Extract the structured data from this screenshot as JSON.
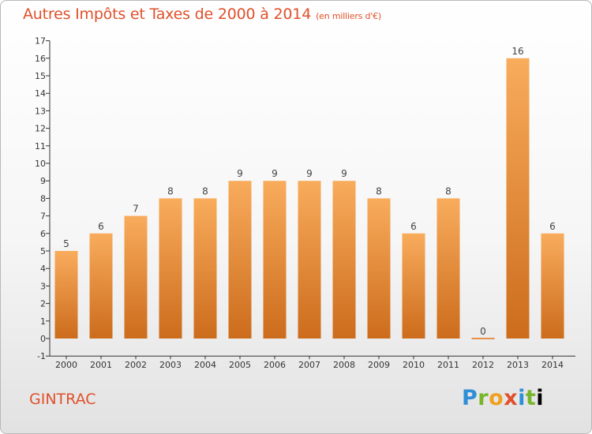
{
  "header": {
    "title": "Autres Impôts et Taxes de 2000 à 2014",
    "subtitle": "(en milliers d'€)"
  },
  "commune": "GINTRAC",
  "logo": {
    "letters": [
      "P",
      "r",
      "o",
      "x",
      "i",
      "t",
      "i"
    ]
  },
  "colors": {
    "title": "#e0502a",
    "bar_light": "#f8ac5c",
    "bar_dark": "#cc6c1c",
    "axis": "#333333"
  },
  "chart_data": {
    "type": "bar",
    "title": "Autres Impôts et Taxes de 2000 à 2014",
    "subtitle": "(en milliers d'€)",
    "categories": [
      "2000",
      "2001",
      "2002",
      "2003",
      "2004",
      "2005",
      "2006",
      "2007",
      "2008",
      "2009",
      "2010",
      "2011",
      "2012",
      "2013",
      "2014"
    ],
    "values": [
      5,
      6,
      7,
      8,
      8,
      9,
      9,
      9,
      9,
      8,
      6,
      8,
      0,
      16,
      6
    ],
    "ylim": [
      -1,
      17
    ],
    "yticks": [
      -1,
      0,
      1,
      2,
      3,
      4,
      5,
      6,
      7,
      8,
      9,
      10,
      11,
      12,
      13,
      14,
      15,
      16,
      17
    ],
    "xlabel": "",
    "ylabel": "",
    "grid": false,
    "legend": "none"
  }
}
